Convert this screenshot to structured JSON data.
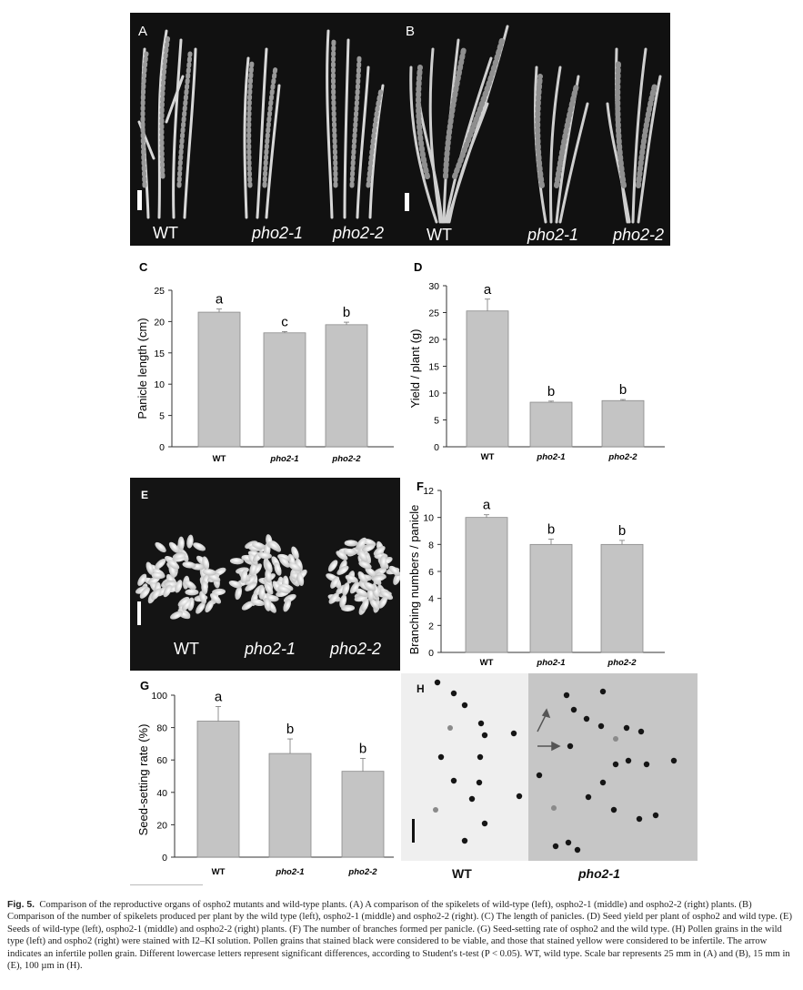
{
  "panels": {
    "A": {
      "letter": "A",
      "labels": [
        "WT",
        "pho2-1",
        "pho2-2"
      ]
    },
    "B": {
      "letter": "B",
      "labels": [
        "WT",
        "pho2-1",
        "pho2-2"
      ]
    },
    "E": {
      "letter": "E",
      "labels": [
        "WT",
        "pho2-1",
        "pho2-2"
      ]
    },
    "H": {
      "letter": "H",
      "labels": [
        "WT",
        "pho2-1"
      ]
    }
  },
  "chart_data": [
    {
      "id": "C",
      "type": "bar",
      "panel_letter": "C",
      "ylabel": "Panicle length (cm)",
      "categories": [
        "WT",
        "pho2-1",
        "pho2-2"
      ],
      "values": [
        21.5,
        18.2,
        19.5
      ],
      "errors": [
        0.5,
        0.2,
        0.4
      ],
      "letters": [
        "a",
        "c",
        "b"
      ],
      "ylim": [
        0,
        25
      ],
      "yticks": [
        0,
        5,
        10,
        15,
        20,
        25
      ]
    },
    {
      "id": "D",
      "type": "bar",
      "panel_letter": "D",
      "ylabel": "Yield / plant (g)",
      "categories": [
        "WT",
        "pho2-1",
        "pho2-2"
      ],
      "values": [
        25.3,
        8.3,
        8.6
      ],
      "errors": [
        2.2,
        0.2,
        0.2
      ],
      "letters": [
        "a",
        "b",
        "b"
      ],
      "ylim": [
        0,
        30
      ],
      "yticks": [
        0,
        5,
        10,
        15,
        20,
        25,
        30
      ]
    },
    {
      "id": "F",
      "type": "bar",
      "panel_letter": "F",
      "ylabel": "Branching numbers / panicle",
      "categories": [
        "WT",
        "pho2-1",
        "pho2-2"
      ],
      "values": [
        10,
        8,
        8
      ],
      "errors": [
        0.2,
        0.4,
        0.3
      ],
      "letters": [
        "a",
        "b",
        "b"
      ],
      "ylim": [
        0,
        12
      ],
      "yticks": [
        0,
        2,
        4,
        6,
        8,
        10,
        12
      ]
    },
    {
      "id": "G",
      "type": "bar",
      "panel_letter": "G",
      "ylabel": "Seed-setting rate (%)",
      "categories": [
        "WT",
        "pho2-1",
        "pho2-2"
      ],
      "values": [
        84,
        64,
        53
      ],
      "errors": [
        9,
        9,
        8
      ],
      "letters": [
        "a",
        "b",
        "b"
      ],
      "ylim": [
        0,
        100
      ],
      "yticks": [
        0,
        20,
        40,
        60,
        80,
        100
      ]
    }
  ],
  "caption": {
    "label": "Fig. 5.",
    "text": "Comparison of the reproductive organs of ospho2 mutants and wild-type plants. (A) A comparison of the spikelets of wild-type (left), ospho2-1 (middle) and ospho2-2 (right) plants. (B) Comparison of the number of spikelets produced per plant by the wild type (left), ospho2-1 (middle) and ospho2-2 (right). (C) The length of panicles. (D) Seed yield per plant of ospho2 and wild type. (E) Seeds of wild-type (left), ospho2-1 (middle) and ospho2-2 (right) plants. (F) The number of branches formed per panicle. (G) Seed-setting rate of ospho2 and the wild type. (H) Pollen grains in the wild type (left) and ospho2 (right) were stained with I2–KI solution. Pollen grains that stained black were considered to be viable, and those that stained yellow were considered to be infertile. The arrow indicates an infertile pollen grain. Different lowercase letters represent significant differences, according to Student's t-test (P < 0.05). WT, wild type. Scale bar represents 25 mm in (A) and (B), 15 mm in (E), 100 µm in (H)."
  }
}
